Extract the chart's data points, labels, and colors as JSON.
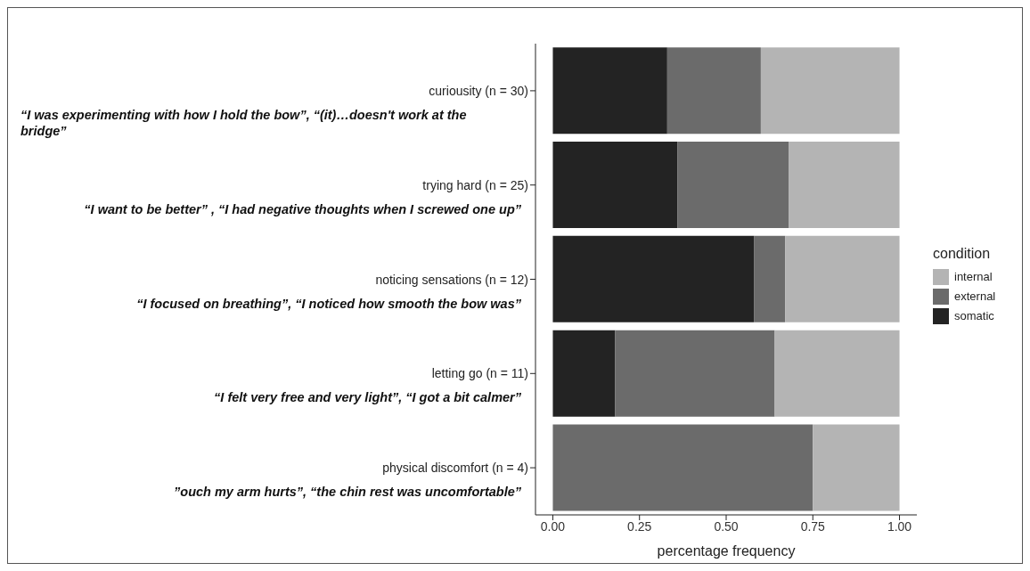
{
  "chart_data": {
    "type": "bar",
    "orientation": "horizontal",
    "stacked": true,
    "categories": [
      "curiousity (n = 30)",
      "trying hard (n = 25)",
      "noticing sensations (n = 12)",
      "letting go (n = 11)",
      "physical discomfort (n = 4)"
    ],
    "series": [
      {
        "name": "somatic",
        "color": "#232323",
        "values": [
          0.33,
          0.36,
          0.58,
          0.18,
          0
        ]
      },
      {
        "name": "external",
        "color": "#6b6b6b",
        "values": [
          0.27,
          0.32,
          0.09,
          0.46,
          0.75
        ]
      },
      {
        "name": "internal",
        "color": "#b4b4b4",
        "values": [
          0.4,
          0.32,
          0.33,
          0.36,
          0.25
        ]
      }
    ],
    "annotations": [
      "“I was experimenting with how I hold the bow”, “(it)…doesn't work at the bridge”",
      "“I want to be better” , “I had negative thoughts when I screwed one up”",
      "“I focused on breathing”, “I noticed how smooth the bow was”",
      "“I felt very free and very light”, “I got a bit calmer”",
      "”ouch my arm hurts”, “the chin rest was uncomfortable”"
    ],
    "xlabel": "percentage frequency",
    "legend_title": "condition",
    "legend": "right",
    "grid": false,
    "xlim": [
      -0.05,
      1.05
    ],
    "xticks": [
      {
        "value": 0,
        "label": "0.00"
      },
      {
        "value": 0.25,
        "label": "0.25"
      },
      {
        "value": 0.5,
        "label": "0.50"
      },
      {
        "value": 0.75,
        "label": "0.75"
      },
      {
        "value": 1,
        "label": "1.00"
      }
    ]
  }
}
